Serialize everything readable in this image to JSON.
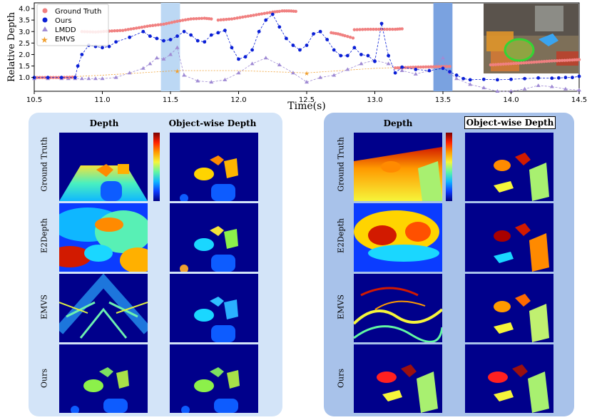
{
  "chart_data": {
    "type": "line",
    "title": "",
    "xlabel": "Time(s)",
    "ylabel": "Relative Depth",
    "xlim": [
      10.5,
      14.5
    ],
    "ylim": [
      0.4,
      4.25
    ],
    "xticks": [
      10.5,
      11.0,
      11.5,
      12.0,
      12.5,
      13.0,
      13.5,
      14.0,
      14.5
    ],
    "xtick_labels": [
      "10.5",
      "11.0",
      "11.5",
      "12.0",
      "12.5",
      "13.0",
      "13.5",
      "14.0",
      "14.5"
    ],
    "yticks": [
      1.0,
      1.5,
      2.0,
      2.5,
      3.0,
      3.5,
      4.0
    ],
    "ytick_labels": [
      "1.0",
      "1.5",
      "2.0",
      "2.5",
      "3.0",
      "3.5",
      "4.0"
    ],
    "legend": [
      "Ground Truth",
      "Ours",
      "LMDD",
      "EMVS"
    ],
    "legend_position": "top-left",
    "highlight_spans": [
      {
        "x0": 11.43,
        "x1": 11.57,
        "color": "#bcd8f4"
      },
      {
        "x0": 13.43,
        "x1": 13.57,
        "color": "#7aa2e0"
      }
    ],
    "series": [
      {
        "name": "Ground Truth",
        "marker": "circle",
        "color": "#f08080",
        "segments": [
          {
            "x": [
              10.5,
              10.6,
              10.7,
              10.8
            ],
            "y": [
              1.0,
              1.0,
              1.0,
              1.02
            ]
          },
          {
            "x": [
              10.85,
              10.95,
              11.05,
              11.15,
              11.25,
              11.35,
              11.45,
              11.55,
              11.65,
              11.75,
              11.8
            ],
            "y": [
              3.0,
              2.98,
              3.02,
              3.05,
              3.15,
              3.25,
              3.32,
              3.45,
              3.55,
              3.58,
              3.55
            ]
          },
          {
            "x": [
              11.85,
              11.95,
              12.05,
              12.15,
              12.25,
              12.3
            ],
            "y": [
              3.5,
              3.55,
              3.65,
              3.75,
              3.85,
              3.88
            ]
          },
          {
            "x": [
              12.32,
              12.37,
              12.42
            ],
            "y": [
              3.9,
              3.9,
              3.88
            ]
          },
          {
            "x": [
              12.68,
              12.73,
              12.78,
              12.84
            ],
            "y": [
              2.95,
              2.9,
              2.82,
              2.72
            ]
          },
          {
            "x": [
              12.85,
              12.95,
              13.05,
              13.15,
              13.2
            ],
            "y": [
              3.08,
              3.1,
              3.1,
              3.1,
              3.12
            ]
          },
          {
            "x": [
              13.15,
              13.3,
              13.45,
              13.55
            ],
            "y": [
              1.42,
              1.45,
              1.47,
              1.48
            ]
          },
          {
            "x": [
              13.85,
              14.0,
              14.15,
              14.3,
              14.45,
              14.5
            ],
            "y": [
              1.55,
              1.6,
              1.66,
              1.72,
              1.76,
              1.78
            ]
          }
        ]
      },
      {
        "name": "Ours",
        "marker": "circle",
        "color": "#0a1fd6",
        "x": [
          10.5,
          10.6,
          10.7,
          10.8,
          10.82,
          10.85,
          10.9,
          10.95,
          11.0,
          11.05,
          11.1,
          11.2,
          11.3,
          11.35,
          11.4,
          11.45,
          11.5,
          11.55,
          11.6,
          11.65,
          11.7,
          11.75,
          11.8,
          11.85,
          11.9,
          11.95,
          12.0,
          12.05,
          12.1,
          12.15,
          12.2,
          12.25,
          12.3,
          12.35,
          12.4,
          12.45,
          12.5,
          12.55,
          12.6,
          12.65,
          12.7,
          12.75,
          12.8,
          12.85,
          12.9,
          12.95,
          13.0,
          13.05,
          13.1,
          13.15,
          13.2,
          13.3,
          13.4,
          13.5,
          13.55,
          13.6,
          13.65,
          13.7,
          13.8,
          13.9,
          14.0,
          14.1,
          14.2,
          14.3,
          14.35,
          14.4,
          14.45,
          14.5
        ],
        "y": [
          1.0,
          1.0,
          1.0,
          1.0,
          1.5,
          2.0,
          2.4,
          2.35,
          2.3,
          2.35,
          2.55,
          2.75,
          3.0,
          2.8,
          2.7,
          2.6,
          2.65,
          2.8,
          3.0,
          2.85,
          2.6,
          2.55,
          2.85,
          2.95,
          3.05,
          2.3,
          1.8,
          1.9,
          2.2,
          3.0,
          3.5,
          3.75,
          3.2,
          2.7,
          2.4,
          2.2,
          2.4,
          2.9,
          3.0,
          2.65,
          2.2,
          1.95,
          1.95,
          2.3,
          2.0,
          1.95,
          1.7,
          3.35,
          1.95,
          1.2,
          1.45,
          1.35,
          1.3,
          1.4,
          1.25,
          1.1,
          0.95,
          0.9,
          0.92,
          0.9,
          0.92,
          0.95,
          0.98,
          0.97,
          0.98,
          1.0,
          1.0,
          1.05
        ]
      },
      {
        "name": "LMDD",
        "marker": "triangle",
        "color": "#9f8ad4",
        "x": [
          10.5,
          10.6,
          10.7,
          10.75,
          10.8,
          10.85,
          10.9,
          10.95,
          11.0,
          11.1,
          11.2,
          11.3,
          11.35,
          11.4,
          11.45,
          11.5,
          11.55,
          11.6,
          11.7,
          11.8,
          11.9,
          12.0,
          12.1,
          12.2,
          12.3,
          12.4,
          12.5,
          12.6,
          12.7,
          12.8,
          12.9,
          13.0,
          13.1,
          13.2,
          13.3,
          13.4,
          13.45,
          13.5,
          13.55,
          13.6,
          13.7,
          13.8,
          13.9,
          14.0,
          14.1,
          14.2,
          14.3,
          14.4,
          14.5
        ],
        "y": [
          0.95,
          0.95,
          0.95,
          0.95,
          0.95,
          0.95,
          0.95,
          0.95,
          0.95,
          1.0,
          1.2,
          1.4,
          1.6,
          1.85,
          1.8,
          2.0,
          2.3,
          1.1,
          0.85,
          0.8,
          0.9,
          1.2,
          1.6,
          1.85,
          1.55,
          1.2,
          0.8,
          1.0,
          1.1,
          1.35,
          1.6,
          1.75,
          1.6,
          1.3,
          1.15,
          1.3,
          1.5,
          1.85,
          1.2,
          0.95,
          0.7,
          0.55,
          0.4,
          0.4,
          0.5,
          0.65,
          0.6,
          0.5,
          0.45
        ]
      },
      {
        "name": "EMVS",
        "marker": "star",
        "color": "#f0a030",
        "x": [
          10.5,
          11.0,
          11.55,
          12.0,
          12.5,
          13.0,
          13.5
        ],
        "y": [
          0.95,
          1.1,
          1.3,
          1.3,
          1.2,
          1.4,
          1.5
        ]
      }
    ]
  },
  "panels": {
    "left": {
      "col_titles": [
        "Depth",
        "Object-wise Depth"
      ],
      "row_labels": [
        "Ground Truth",
        "E2Depth",
        "EMVS",
        "Ours"
      ]
    },
    "right": {
      "col_titles": [
        "Depth",
        "Object-wise Depth"
      ],
      "row_labels": [
        "Ground Truth",
        "E2Depth",
        "EMVS",
        "Ours"
      ]
    }
  },
  "colors": {
    "depth_background": "#00008b",
    "gt_color": "#f08080",
    "ours_color": "#0a1fd6",
    "lmdd_color": "#9f8ad4",
    "emvs_color": "#f0a030"
  }
}
